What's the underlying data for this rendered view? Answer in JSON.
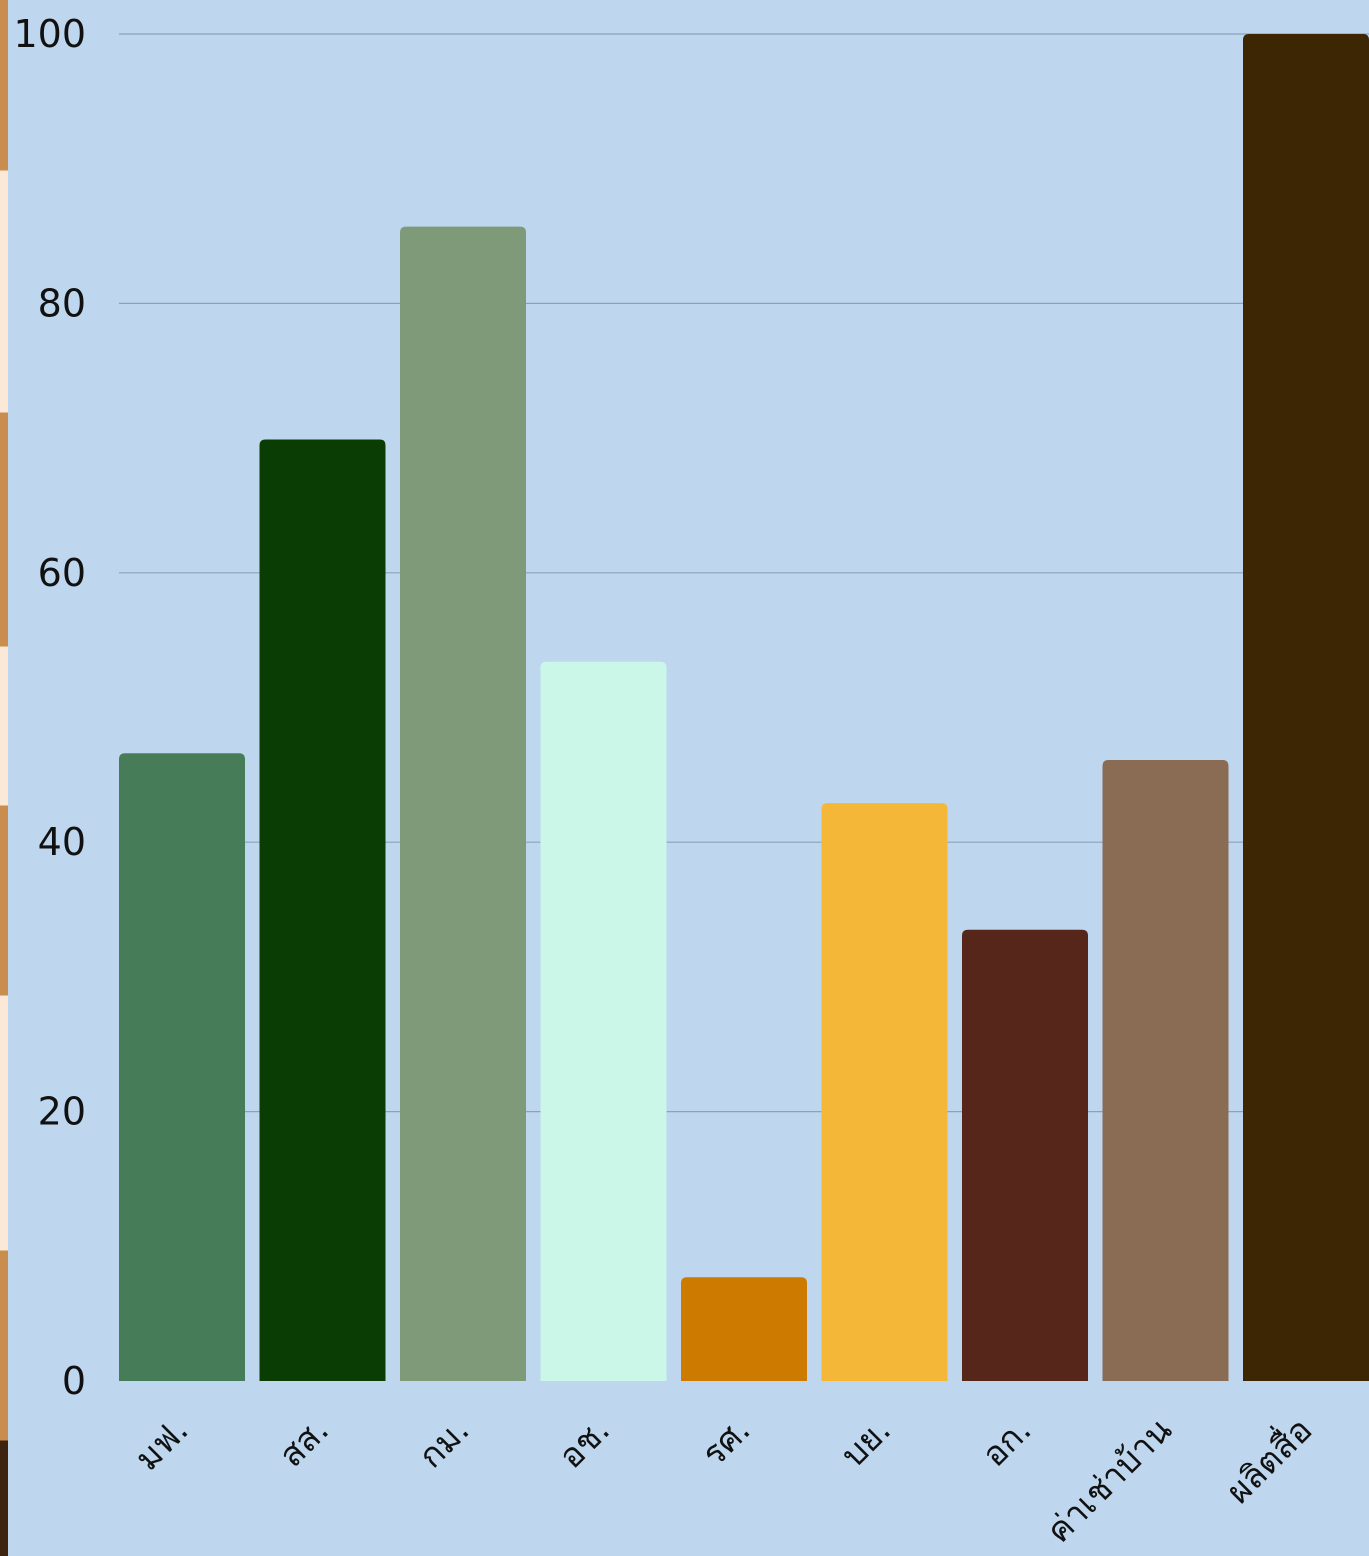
{
  "chart_data": {
    "type": "bar",
    "categories": [
      "มฟ.",
      "สส.",
      "กม.",
      "อช.",
      "รศ.",
      "บย.",
      "อก.",
      "ค่าเช่าบ้าน",
      "ผลิตสื่อ"
    ],
    "values": [
      46.6,
      69.9,
      85.7,
      53.4,
      7.7,
      42.9,
      33.5,
      46.1,
      100
    ],
    "colors": [
      "#467d58",
      "#0a3d04",
      "#7e9a78",
      "#cbf7e9",
      "#cc7a00",
      "#f5b738",
      "#57261a",
      "#8a6b53",
      "#3c2603"
    ],
    "ylim": [
      0,
      100
    ],
    "yticks": [
      "0",
      "20",
      "40",
      "60",
      "80",
      "100"
    ],
    "grid": true,
    "title": "",
    "xlabel": "",
    "ylabel": ""
  }
}
